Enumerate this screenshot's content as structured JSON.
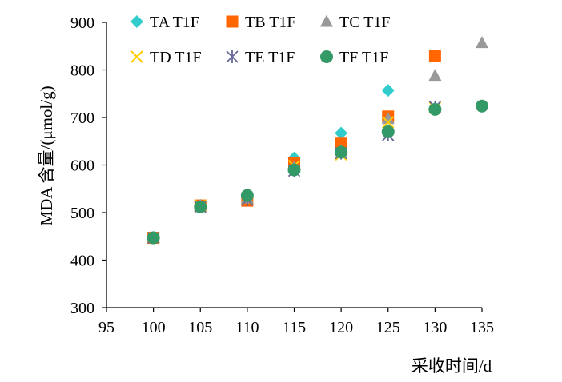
{
  "chart_data": {
    "type": "scatter",
    "xlabel": "采收时间/d",
    "ylabel": "MDA 含量/(μmol/g)",
    "xlim": [
      95,
      135
    ],
    "ylim": [
      300,
      900
    ],
    "x_ticks": [
      95,
      100,
      105,
      110,
      115,
      120,
      125,
      130,
      135
    ],
    "y_ticks": [
      300,
      400,
      500,
      600,
      700,
      800,
      900
    ],
    "grid": false,
    "legend_position": "top",
    "series": [
      {
        "name": "TA T1F",
        "marker": "diamond",
        "color": "#33CCCC",
        "points": [
          [
            100,
            447
          ],
          [
            105,
            515
          ],
          [
            110,
            530
          ],
          [
            115,
            615
          ],
          [
            120,
            667
          ],
          [
            125,
            757
          ]
        ]
      },
      {
        "name": "TB T1F",
        "marker": "square",
        "color": "#FF6600",
        "points": [
          [
            100,
            447
          ],
          [
            105,
            515
          ],
          [
            110,
            525
          ],
          [
            115,
            605
          ],
          [
            120,
            645
          ],
          [
            125,
            702
          ],
          [
            130,
            830
          ]
        ]
      },
      {
        "name": "TC T1F",
        "marker": "triangle",
        "color": "#999999",
        "points": [
          [
            100,
            447
          ],
          [
            105,
            515
          ],
          [
            110,
            530
          ],
          [
            115,
            595
          ],
          [
            120,
            630
          ],
          [
            125,
            697
          ],
          [
            130,
            788
          ],
          [
            135,
            857
          ]
        ]
      },
      {
        "name": "TD T1F",
        "marker": "x",
        "color": "#FFCC00",
        "points": [
          [
            100,
            447
          ],
          [
            105,
            515
          ],
          [
            110,
            527
          ],
          [
            115,
            598
          ],
          [
            120,
            622
          ],
          [
            125,
            690
          ],
          [
            130,
            720
          ]
        ]
      },
      {
        "name": "TE T1F",
        "marker": "star",
        "color": "#666699",
        "points": [
          [
            100,
            447
          ],
          [
            105,
            512
          ],
          [
            110,
            527
          ],
          [
            115,
            588
          ],
          [
            120,
            625
          ],
          [
            125,
            663
          ],
          [
            130,
            722
          ]
        ]
      },
      {
        "name": "TF T1F",
        "marker": "circle",
        "color": "#339966",
        "points": [
          [
            100,
            447
          ],
          [
            105,
            512
          ],
          [
            110,
            536
          ],
          [
            115,
            590
          ],
          [
            120,
            627
          ],
          [
            125,
            670
          ],
          [
            130,
            717
          ],
          [
            135,
            724
          ]
        ]
      }
    ]
  }
}
